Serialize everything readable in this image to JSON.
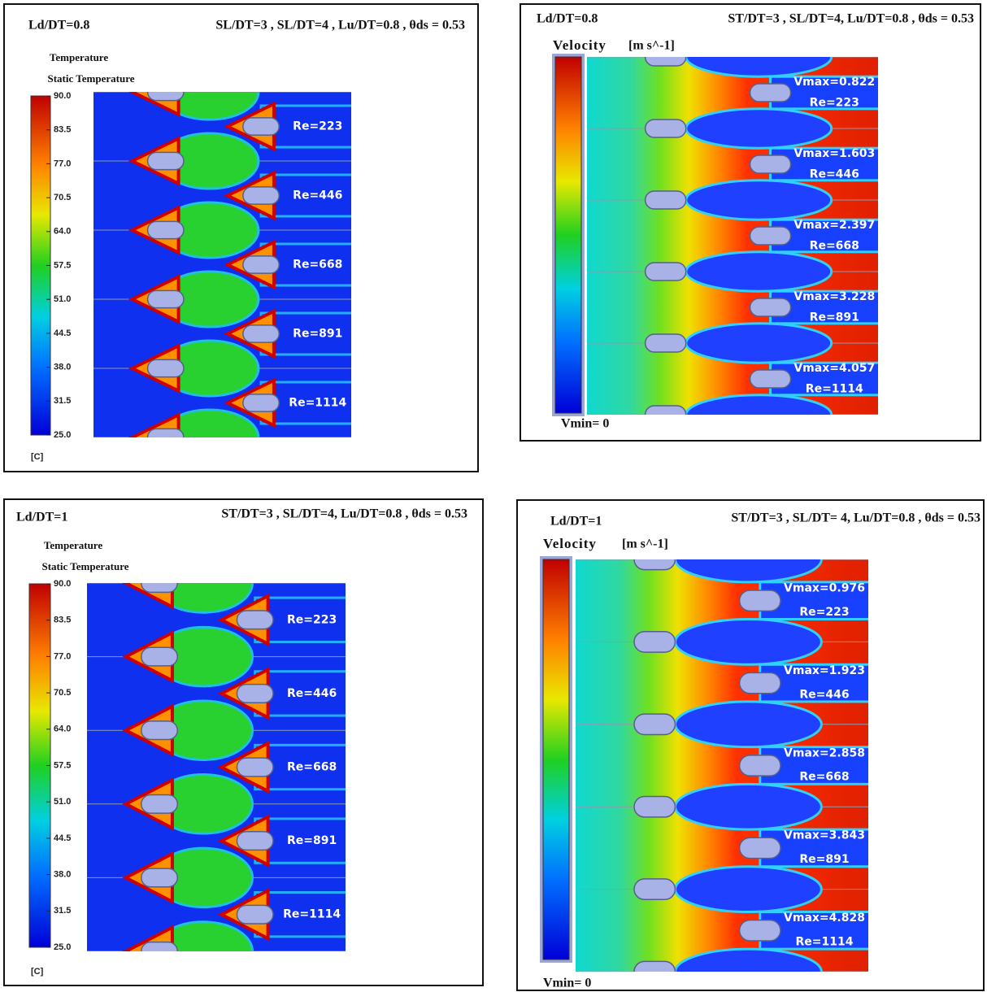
{
  "panels": [
    {
      "kind": "temperature",
      "ld": "Ld/DT=0.8",
      "params": "SL/DT=3 , SL/DT=4 , Lu/DT=0.8 , θds = 0.53",
      "legend_title": "Temperature",
      "legend_subtitle": "Static Temperature",
      "scale_labels": [
        "90.0",
        "83.5",
        "77.0",
        "70.5",
        "64.0",
        "57.5",
        "51.0",
        "44.5",
        "38.0",
        "31.5",
        "25.0"
      ],
      "unit": "[C]",
      "labels": [
        {
          "re": "Re=223"
        },
        {
          "re": "Re=446"
        },
        {
          "re": "Re=668"
        },
        {
          "re": "Re=891"
        },
        {
          "re": "Re=1114"
        }
      ]
    },
    {
      "kind": "velocity",
      "ld": "Ld/DT=0.8",
      "params": "ST/DT=3 , SL/DT=4, Lu/DT=0.8 , θds = 0.53",
      "legend_title": "Velocity",
      "unit": "[m s^-1]",
      "vmin": "Vmin= 0",
      "labels": [
        {
          "vmax": "Vmax=0.822",
          "re": "Re=223"
        },
        {
          "vmax": "Vmax=1.603",
          "re": "Re=446"
        },
        {
          "vmax": "Vmax=2.397",
          "re": "Re=668"
        },
        {
          "vmax": "Vmax=3.228",
          "re": "Re=891"
        },
        {
          "vmax": "Vmax=4.057",
          "re": "Re=1114"
        }
      ]
    },
    {
      "kind": "temperature",
      "ld": "Ld/DT=1",
      "params": "ST/DT=3 , SL/DT=4, Lu/DT=0.8 , θds = 0.53",
      "legend_title": "Temperature",
      "legend_subtitle": "Static Temperature",
      "scale_labels": [
        "90.0",
        "83.5",
        "77.0",
        "70.5",
        "64.0",
        "57.5",
        "51.0",
        "44.5",
        "38.0",
        "31.5",
        "25.0"
      ],
      "unit": "[C]",
      "labels": [
        {
          "re": "Re=223"
        },
        {
          "re": "Re=446"
        },
        {
          "re": "Re=668"
        },
        {
          "re": "Re=891"
        },
        {
          "re": "Re=1114"
        }
      ]
    },
    {
      "kind": "velocity",
      "ld": "Ld/DT=1",
      "params": "ST/DT=3 , SL/DT= 4, Lu/DT=0.8 , θds = 0.53",
      "legend_title": "Velocity",
      "unit": "[m s^-1]",
      "vmin": "Vmin= 0",
      "labels": [
        {
          "vmax": "Vmax=0.976",
          "re": "Re=223"
        },
        {
          "vmax": "Vmax=1.923",
          "re": "Re=446"
        },
        {
          "vmax": "Vmax=2.858",
          "re": "Re=668"
        },
        {
          "vmax": "Vmax=3.843",
          "re": "Re=891"
        },
        {
          "vmax": "Vmax=4.828",
          "re": "Re=1114"
        }
      ]
    }
  ]
}
